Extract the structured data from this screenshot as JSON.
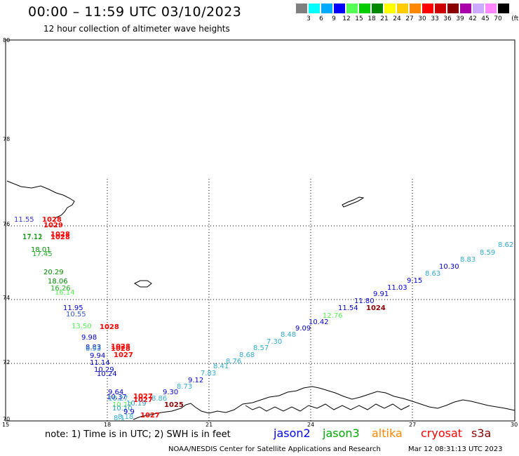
{
  "title": "00:00 – 11:59 UTC 03/10/2023",
  "subtitle": "12 hour collection of altimeter wave heights",
  "legend": {
    "unit": "(ft)",
    "items": [
      {
        "color": "#7f7f7f",
        "label": "3"
      },
      {
        "color": "#00ffff",
        "label": "6"
      },
      {
        "color": "#00aaff",
        "label": "9"
      },
      {
        "color": "#0000ff",
        "label": "12"
      },
      {
        "color": "#55ff55",
        "label": "15"
      },
      {
        "color": "#00cc00",
        "label": "18"
      },
      {
        "color": "#008800",
        "label": "21"
      },
      {
        "color": "#ffff00",
        "label": "24"
      },
      {
        "color": "#ffcc00",
        "label": "27"
      },
      {
        "color": "#ff8800",
        "label": "30"
      },
      {
        "color": "#ff0000",
        "label": "33"
      },
      {
        "color": "#cc0000",
        "label": "36"
      },
      {
        "color": "#880000",
        "label": "39"
      },
      {
        "color": "#aa00aa",
        "label": "42"
      },
      {
        "color": "#ccaaff",
        "label": "45"
      },
      {
        "color": "#ff88ff",
        "label": "70"
      },
      {
        "color": "#000000",
        "label": ""
      }
    ]
  },
  "axes": {
    "lat_labels": [
      "80",
      "78",
      "76",
      "74",
      "72",
      "70"
    ],
    "lon_labels": [
      "15",
      "18",
      "21",
      "24",
      "27",
      "30"
    ]
  },
  "observations": [
    {
      "text": "11.55",
      "color": "#3333cc"
    },
    {
      "text": "1028",
      "color": "#ff0000"
    },
    {
      "text": "1029",
      "color": "#ff0000"
    },
    {
      "text": "17.11",
      "color": "#55cc55"
    },
    {
      "text": "17.12",
      "color": "#008800"
    },
    {
      "text": "1028",
      "color": "#ff0000"
    },
    {
      "text": "1028",
      "color": "#ff0000"
    },
    {
      "text": "18.01",
      "color": "#008800"
    },
    {
      "text": "17.45",
      "color": "#22aa22"
    },
    {
      "text": "20.29",
      "color": "#008800"
    },
    {
      "text": "18.06",
      "color": "#008800"
    },
    {
      "text": "16.26",
      "color": "#22aa22"
    },
    {
      "text": "16.14",
      "color": "#55ee55"
    },
    {
      "text": "11.95",
      "color": "#0000cc"
    },
    {
      "text": "10.55",
      "color": "#3355cc"
    },
    {
      "text": "13.50",
      "color": "#55ee55"
    },
    {
      "text": "1028",
      "color": "#ff0000"
    },
    {
      "text": "9.98",
      "color": "#0000cc"
    },
    {
      "text": "8.83",
      "color": "#0000aa"
    },
    {
      "text": "8.93",
      "color": "#3399cc"
    },
    {
      "text": "1028",
      "color": "#ff0000"
    },
    {
      "text": "1028",
      "color": "#ff0000"
    },
    {
      "text": "9.94",
      "color": "#0000cc"
    },
    {
      "text": "1027",
      "color": "#ff0000"
    },
    {
      "text": "11.14",
      "color": "#0000cc"
    },
    {
      "text": "10.29",
      "color": "#0000cc"
    },
    {
      "text": "10.24",
      "color": "#0000cc"
    },
    {
      "text": "9.64",
      "color": "#0000cc"
    },
    {
      "text": "10.37",
      "color": "#0000cc"
    },
    {
      "text": "10.27",
      "color": "#33aacc"
    },
    {
      "text": "1027",
      "color": "#ff0000"
    },
    {
      "text": "1027",
      "color": "#ff0000"
    },
    {
      "text": "10.17",
      "color": "#55ee55"
    },
    {
      "text": "10.10",
      "color": "#3399cc"
    },
    {
      "text": "9.9",
      "color": "#0000cc"
    },
    {
      "text": "10.19",
      "color": "#3399cc"
    },
    {
      "text": "1027",
      "color": "#ff0000"
    },
    {
      "text": "8.1",
      "color": "#33aacc"
    },
    {
      "text": "8.18",
      "color": "#33aacc"
    },
    {
      "text": "1025",
      "color": "#880000"
    },
    {
      "text": "9.30",
      "color": "#0000cc"
    },
    {
      "text": "8.86",
      "color": "#33aacc"
    },
    {
      "text": "8.73",
      "color": "#33aacc"
    },
    {
      "text": "9.12",
      "color": "#0000cc"
    },
    {
      "text": "7.83",
      "color": "#33aacc"
    },
    {
      "text": "8.41",
      "color": "#33aacc"
    },
    {
      "text": "8.76",
      "color": "#33aacc"
    },
    {
      "text": "8.68",
      "color": "#33aacc"
    },
    {
      "text": "8.57",
      "color": "#33aacc"
    },
    {
      "text": "7.30",
      "color": "#33aacc"
    },
    {
      "text": "8.48",
      "color": "#33aacc"
    },
    {
      "text": "9.09",
      "color": "#0000cc"
    },
    {
      "text": "10.42",
      "color": "#0000cc"
    },
    {
      "text": "12.76",
      "color": "#55ee55"
    },
    {
      "text": "11.54",
      "color": "#0000cc"
    },
    {
      "text": "11.80",
      "color": "#0000cc"
    },
    {
      "text": "1024",
      "color": "#880000"
    },
    {
      "text": "9.91",
      "color": "#0000cc"
    },
    {
      "text": "11.03",
      "color": "#0000cc"
    },
    {
      "text": "9.15",
      "color": "#0000cc"
    },
    {
      "text": "8.63",
      "color": "#33aacc"
    },
    {
      "text": "10.30",
      "color": "#0000cc"
    },
    {
      "text": "8.83",
      "color": "#33aacc"
    },
    {
      "text": "8.59",
      "color": "#33aacc"
    },
    {
      "text": "8.62",
      "color": "#33aacc"
    }
  ],
  "note": "note: 1) Time is in UTC; 2) SWH is in feet",
  "satellites": [
    {
      "name": "jason2",
      "color": "#0000ff"
    },
    {
      "name": "jason3",
      "color": "#00aa00"
    },
    {
      "name": "altika",
      "color": "#ff8800"
    },
    {
      "name": "cryosat",
      "color": "#ff0000"
    },
    {
      "name": "s3a",
      "color": "#880000"
    }
  ],
  "footer": {
    "credit": "NOAA/NESDIS Center for Satellite Applications and Research",
    "timestamp": "Mar 12 08:31:13 UTC 2023"
  }
}
